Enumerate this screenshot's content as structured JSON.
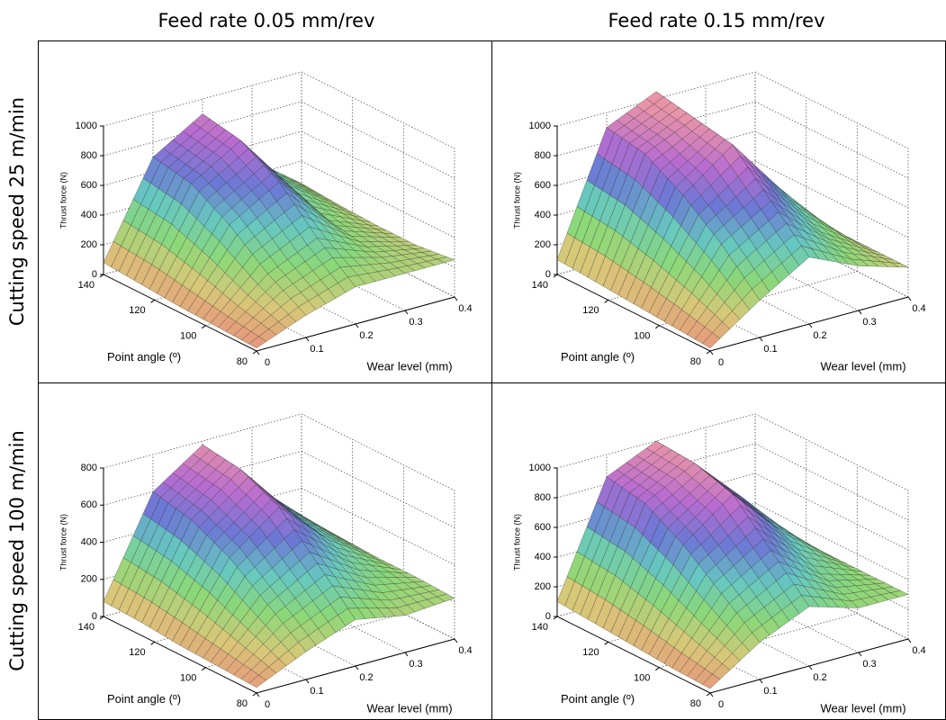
{
  "column_titles": [
    "Feed rate 0.05 mm/rev",
    "Feed rate 0.15 mm/rev"
  ],
  "row_titles": [
    "Cutting speed 25 m/min",
    "Cutting speed 100 m/min"
  ],
  "colormap": [
    "#e8907c",
    "#d8c878",
    "#8cd878",
    "#66c8c0",
    "#6c78d4",
    "#b86cd0",
    "#e894a8"
  ],
  "chart_data": [
    {
      "type": "surface",
      "x_label": "Point angle (º)",
      "y_label": "Wear level (mm)",
      "z_label": "Thrust force (N)",
      "x": [
        80,
        95,
        110,
        125,
        140
      ],
      "y": [
        0,
        0.1,
        0.2,
        0.3,
        0.4
      ],
      "z": [
        [
          20,
          150,
          250,
          250,
          250
        ],
        [
          30,
          300,
          450,
          300,
          220
        ],
        [
          40,
          500,
          700,
          350,
          220
        ],
        [
          60,
          650,
          850,
          450,
          230
        ],
        [
          80,
          700,
          900,
          500,
          250
        ]
      ],
      "xlim": [
        80,
        140
      ],
      "ylim": [
        0,
        0.4
      ],
      "zlim": [
        0,
        1000
      ],
      "xticks": [
        80,
        100,
        120,
        140
      ],
      "yticks": [
        0,
        0.1,
        0.2,
        0.3,
        0.4
      ],
      "zticks": [
        0,
        200,
        400,
        600,
        800,
        1000
      ],
      "grid": true
    },
    {
      "type": "surface",
      "x_label": "Point angle (º)",
      "y_label": "Wear level (mm)",
      "z_label": "Thrust force (N)",
      "x": [
        80,
        95,
        110,
        125,
        140
      ],
      "y": [
        0,
        0.1,
        0.2,
        0.3,
        0.4
      ],
      "z": [
        [
          20,
          250,
          450,
          300,
          200
        ],
        [
          40,
          500,
          700,
          400,
          200
        ],
        [
          60,
          700,
          950,
          550,
          200
        ],
        [
          80,
          850,
          1000,
          650,
          200
        ],
        [
          100,
          900,
          1050,
          700,
          200
        ]
      ],
      "xlim": [
        80,
        140
      ],
      "ylim": [
        0,
        0.4
      ],
      "zlim": [
        0,
        1000
      ],
      "xticks": [
        80,
        100,
        120,
        140
      ],
      "yticks": [
        0,
        0.1,
        0.2,
        0.3,
        0.4
      ],
      "zticks": [
        0,
        200,
        400,
        600,
        800,
        1000
      ],
      "grid": true
    },
    {
      "type": "surface",
      "x_label": "Point angle (º)",
      "y_label": "Wear level (mm)",
      "z_label": "Thrust force (N)",
      "x": [
        80,
        95,
        110,
        125,
        140
      ],
      "y": [
        0,
        0.1,
        0.2,
        0.3,
        0.4
      ],
      "z": [
        [
          30,
          150,
          250,
          200,
          220
        ],
        [
          40,
          300,
          450,
          300,
          230
        ],
        [
          50,
          450,
          650,
          400,
          230
        ],
        [
          70,
          550,
          750,
          450,
          240
        ],
        [
          80,
          600,
          780,
          500,
          250
        ]
      ],
      "xlim": [
        80,
        140
      ],
      "ylim": [
        0,
        0.4
      ],
      "zlim": [
        0,
        800
      ],
      "xticks": [
        80,
        100,
        120,
        140
      ],
      "yticks": [
        0,
        0.1,
        0.2,
        0.3,
        0.4
      ],
      "zticks": [
        0,
        200,
        400,
        600,
        800
      ],
      "grid": true
    },
    {
      "type": "surface",
      "x_label": "Point angle (º)",
      "y_label": "Wear level (mm)",
      "z_label": "Thrust force (N)",
      "x": [
        80,
        95,
        110,
        125,
        140
      ],
      "y": [
        0,
        0.1,
        0.2,
        0.3,
        0.4
      ],
      "z": [
        [
          30,
          250,
          400,
          300,
          300
        ],
        [
          40,
          450,
          650,
          400,
          300
        ],
        [
          60,
          650,
          900,
          550,
          300
        ],
        [
          80,
          800,
          980,
          650,
          300
        ],
        [
          100,
          850,
          1000,
          700,
          300
        ]
      ],
      "xlim": [
        80,
        140
      ],
      "ylim": [
        0,
        0.4
      ],
      "zlim": [
        0,
        1000
      ],
      "xticks": [
        80,
        100,
        120,
        140
      ],
      "yticks": [
        0,
        0.1,
        0.2,
        0.3,
        0.4
      ],
      "zticks": [
        0,
        200,
        400,
        600,
        800,
        1000
      ],
      "grid": true
    }
  ]
}
